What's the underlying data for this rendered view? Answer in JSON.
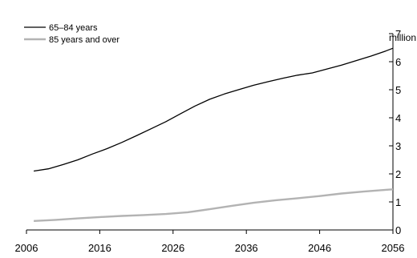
{
  "chart_data": {
    "type": "line",
    "title": "",
    "xlabel": "",
    "ylabel": "million",
    "ylim": [
      0,
      7
    ],
    "xlim": [
      2006,
      2056
    ],
    "yticks": [
      0,
      1,
      2,
      3,
      4,
      5,
      6,
      7
    ],
    "xticks": [
      2006,
      2016,
      2026,
      2036,
      2046,
      2056
    ],
    "grid": false,
    "legend_position": "top-left",
    "series": [
      {
        "name": "65–84 years",
        "color": "#000000",
        "x": [
          2007,
          2009,
          2011,
          2013,
          2015,
          2017,
          2019,
          2021,
          2023,
          2025,
          2027,
          2029,
          2031,
          2033,
          2035,
          2037,
          2039,
          2041,
          2043,
          2045,
          2047,
          2049,
          2051,
          2053,
          2055,
          2056
        ],
        "values": [
          2.1,
          2.18,
          2.33,
          2.5,
          2.71,
          2.9,
          3.12,
          3.36,
          3.61,
          3.86,
          4.14,
          4.42,
          4.66,
          4.85,
          5.01,
          5.16,
          5.29,
          5.41,
          5.52,
          5.6,
          5.74,
          5.88,
          6.04,
          6.2,
          6.38,
          6.48
        ]
      },
      {
        "name": "85 years and over",
        "color": "#b3b3b3",
        "x": [
          2007,
          2010,
          2013,
          2016,
          2019,
          2022,
          2025,
          2028,
          2031,
          2034,
          2037,
          2040,
          2043,
          2046,
          2049,
          2052,
          2055,
          2056
        ],
        "values": [
          0.32,
          0.36,
          0.41,
          0.46,
          0.5,
          0.53,
          0.57,
          0.63,
          0.74,
          0.86,
          0.97,
          1.06,
          1.13,
          1.21,
          1.3,
          1.37,
          1.43,
          1.45
        ]
      }
    ]
  }
}
